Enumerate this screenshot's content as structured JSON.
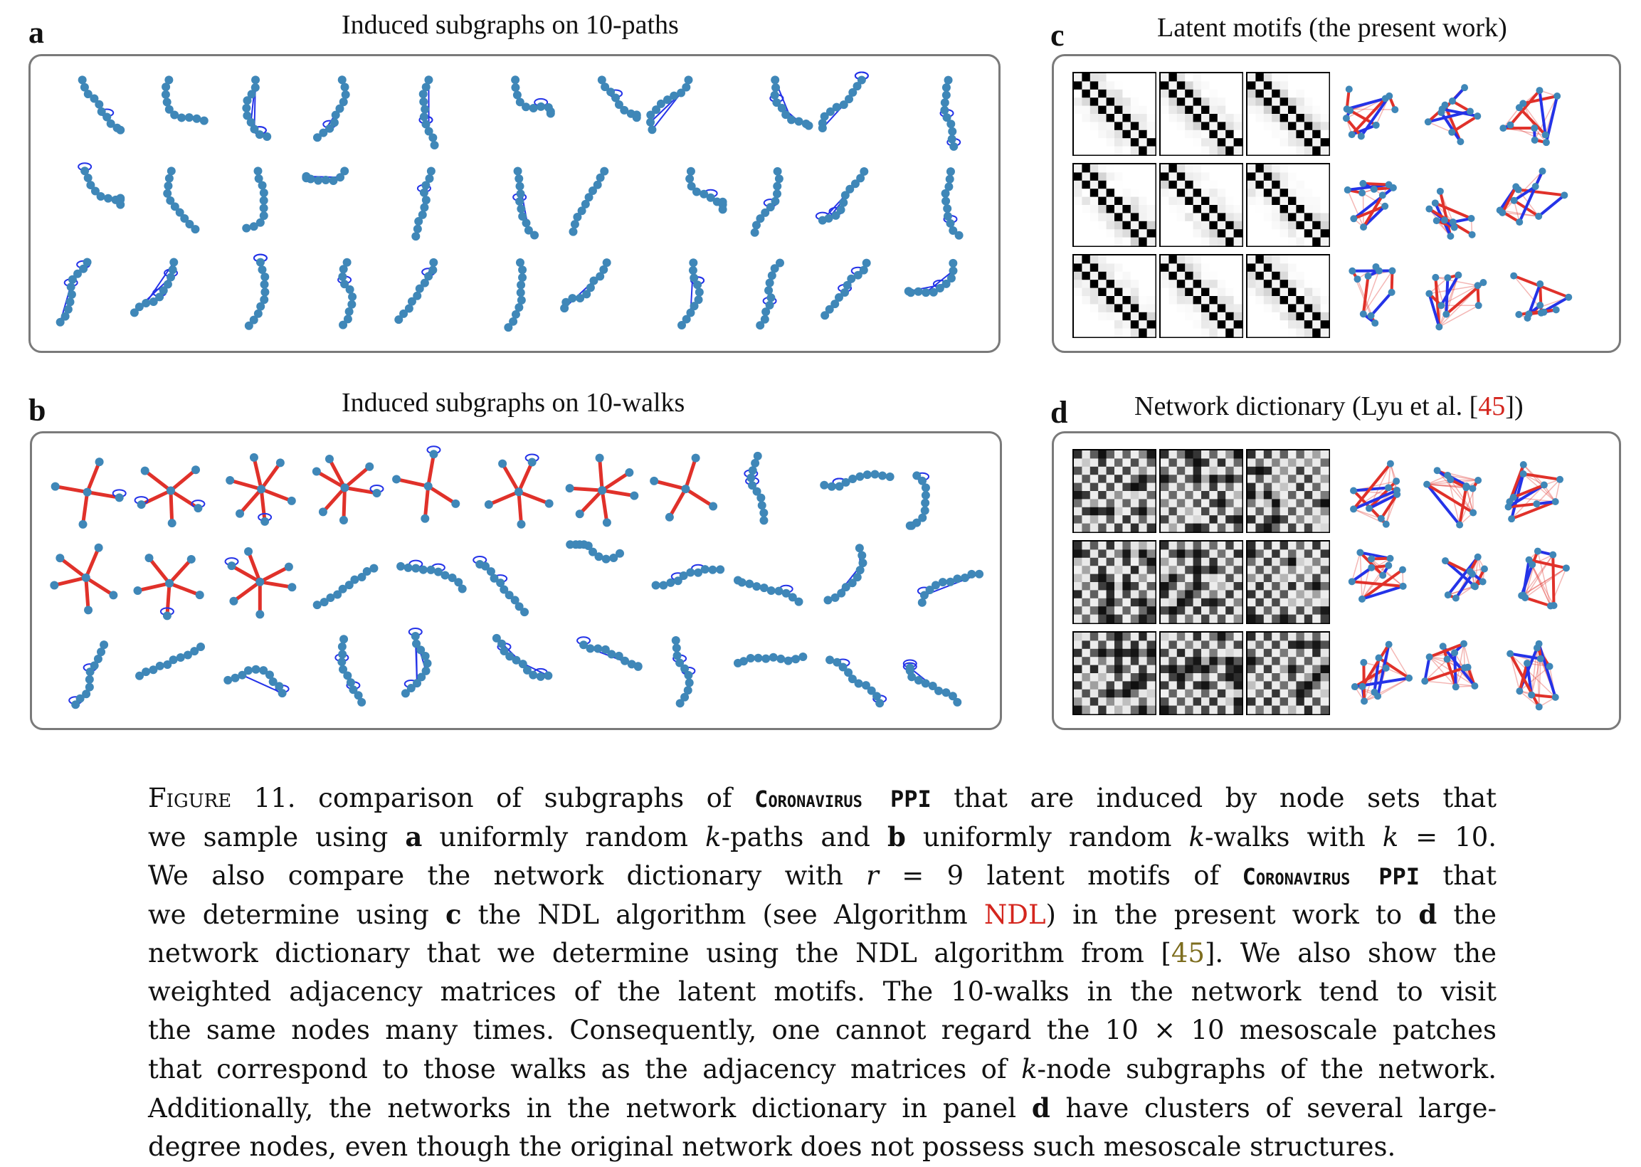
{
  "panels": {
    "a": {
      "letter": "a",
      "title": "Induced subgraphs on 10-paths",
      "kind": "paths"
    },
    "b": {
      "letter": "b",
      "title": "Induced subgraphs on 10-walks",
      "kind": "walks"
    },
    "c": {
      "letter": "c",
      "title_pre": "Latent motifs (the present work)",
      "kind": "motifs"
    },
    "d": {
      "letter": "d",
      "title_pre": "Network dictionary (Lyu et al. [",
      "title_ref": "45",
      "title_post": "])",
      "kind": "dictionary"
    }
  },
  "colors": {
    "edge_red": "#e0312a",
    "edge_blue": "#2433e8",
    "node": "#3f87b8",
    "frame": "#7a7a7a"
  },
  "caption": {
    "figure_label": "Figure 11.",
    "lines": [
      [
        "comparison of subgraphs of ",
        "Coronavirus PPI",
        " that are induced by node sets that"
      ],
      [
        "we sample using ",
        "a",
        " uniformly random ",
        "k",
        "-paths and ",
        "b",
        " uniformly random ",
        "k",
        "-walks with ",
        "k",
        " = 10."
      ],
      [
        "We also compare the network dictionary with ",
        "r",
        " = 9 latent motifs of ",
        "Coronavirus PPI",
        " that"
      ],
      [
        "we determine using ",
        "c",
        " the NDL algorithm (see Algorithm ",
        "NDL",
        ") in the present work to ",
        "d",
        " the"
      ],
      [
        "network dictionary that we determine using the NDL algorithm from [",
        "45",
        "].  We also show the"
      ],
      [
        "weighted adjacency matrices of the latent motifs.  The 10-walks in the network tend to visit"
      ],
      [
        "the same nodes many times.  Consequently, one cannot regard the 10 × 10 mesoscale patches"
      ],
      [
        "that correspond to those walks as the adjacency matrices of ",
        "k",
        "-node subgraphs of the network."
      ],
      [
        "Additionally, the networks in the network dictionary in panel ",
        "d",
        " have clusters of several large-"
      ],
      [
        "degree nodes, even though the original network does not possess such mesoscale structures."
      ]
    ]
  }
}
